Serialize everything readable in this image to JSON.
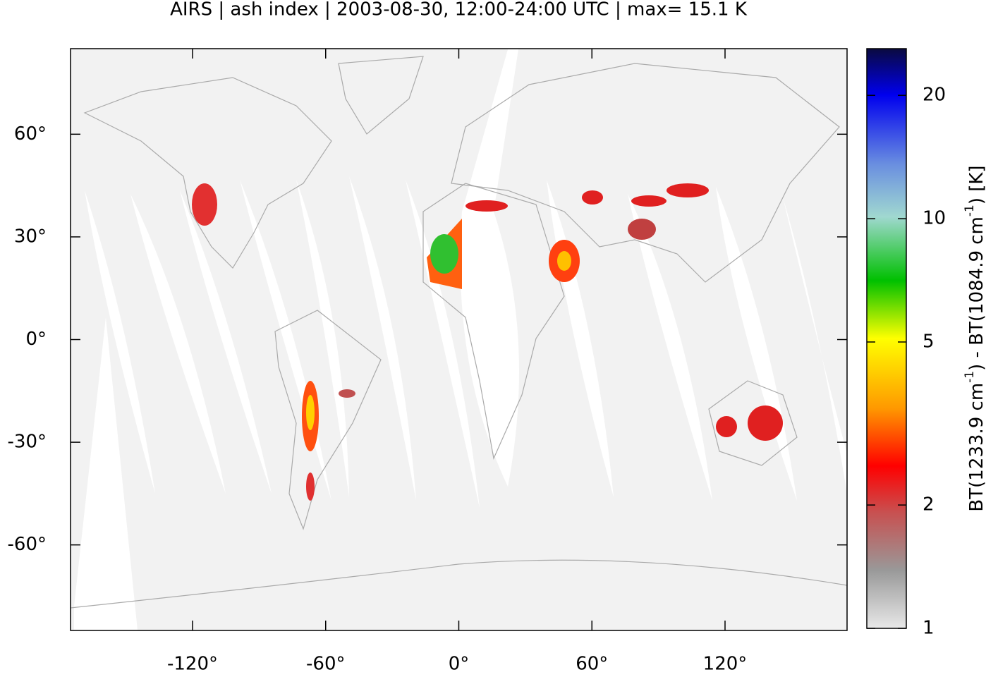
{
  "title": "AIRS | ash index | 2003-08-30, 12:00-24:00 UTC | max= 15.1 K",
  "map": {
    "xlim": [
      -175,
      175
    ],
    "ylim": [
      -85,
      85
    ],
    "xticks": [
      {
        "value": -120,
        "label": "-120°"
      },
      {
        "value": -60,
        "label": "-60°"
      },
      {
        "value": 0,
        "label": "0°"
      },
      {
        "value": 60,
        "label": "60°"
      },
      {
        "value": 120,
        "label": "120°"
      }
    ],
    "yticks": [
      {
        "value": -60,
        "label": "-60°"
      },
      {
        "value": -30,
        "label": "-30°"
      },
      {
        "value": 0,
        "label": "0°"
      },
      {
        "value": 30,
        "label": "30°"
      },
      {
        "value": 60,
        "label": "60°"
      }
    ]
  },
  "colorbar": {
    "log_scale": true,
    "clim": [
      1,
      26
    ],
    "ticks": [
      1,
      2,
      5,
      10,
      20
    ],
    "label": {
      "part1": "BT(1233.9 cm",
      "sup1": "-1",
      "part2": ") - BT(1084.9 cm",
      "sup2": "-1",
      "part3": ") [K]"
    }
  }
}
